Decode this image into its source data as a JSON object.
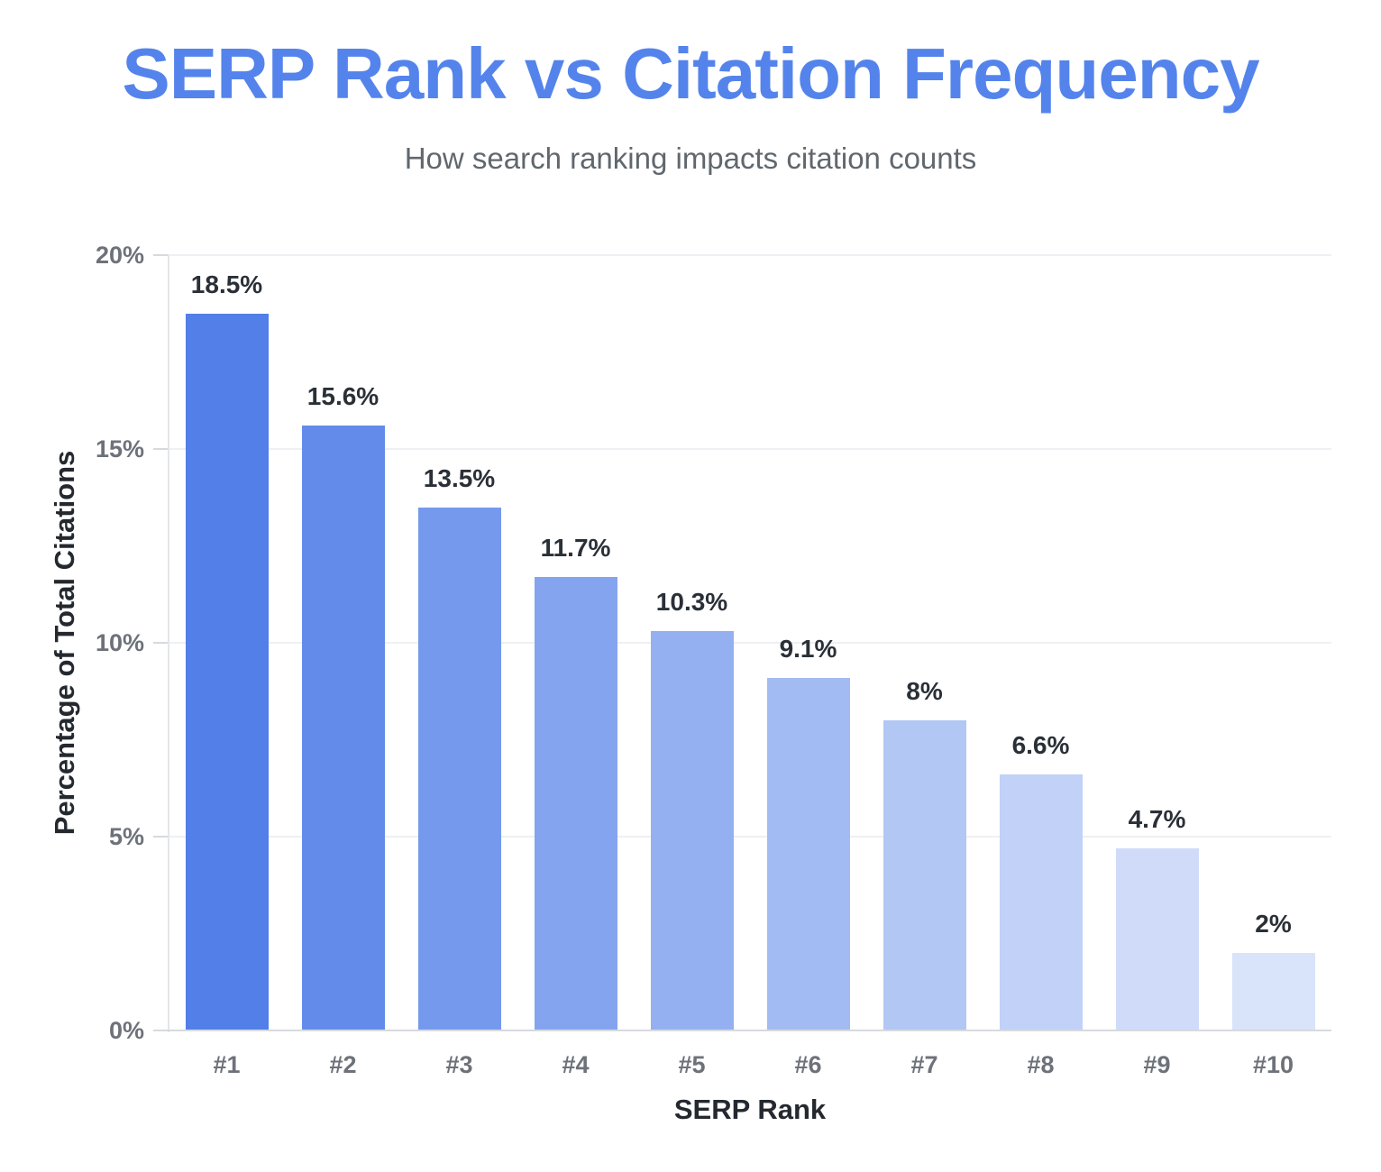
{
  "header": {
    "title": "SERP Rank vs Citation Frequency",
    "subtitle": "How search ranking impacts citation counts"
  },
  "colors": {
    "title_blue": "#5484EB",
    "subtitle_gray": "#60676D",
    "tick_gray": "#6D727A",
    "value_label_dark": "#2A3037",
    "axis_title_dark": "#24292F",
    "gridline": "#EEF0F3",
    "axis_line": "#E3E6E9",
    "baseline": "#D7DADD",
    "background": "#FFFFFF"
  },
  "chart_data": {
    "type": "bar",
    "title": "SERP Rank vs Citation Frequency",
    "subtitle": "How search ranking impacts citation counts",
    "categories": [
      "#1",
      "#2",
      "#3",
      "#4",
      "#5",
      "#6",
      "#7",
      "#8",
      "#9",
      "#10"
    ],
    "values": [
      18.5,
      15.6,
      13.5,
      11.7,
      10.3,
      9.1,
      8,
      6.6,
      4.7,
      2
    ],
    "value_labels": [
      "18.5%",
      "15.6%",
      "13.5%",
      "11.7%",
      "10.3%",
      "9.1%",
      "8%",
      "6.6%",
      "4.7%",
      "2%"
    ],
    "bar_colors": [
      "#527FE8",
      "#638CEA",
      "#7599ED",
      "#84A4EF",
      "#94B0F1",
      "#A3BBF3",
      "#B3C7F5",
      "#C1D1F7",
      "#CFDBF9",
      "#D9E3FA"
    ],
    "xlabel": "SERP Rank",
    "ylabel": "Percentage of Total Citations",
    "ylim": [
      0,
      20
    ],
    "yticks": [
      0,
      5,
      10,
      15,
      20
    ],
    "ytick_labels": [
      "0%",
      "5%",
      "10%",
      "15%",
      "20%"
    ],
    "grid": true,
    "legend": "none"
  }
}
